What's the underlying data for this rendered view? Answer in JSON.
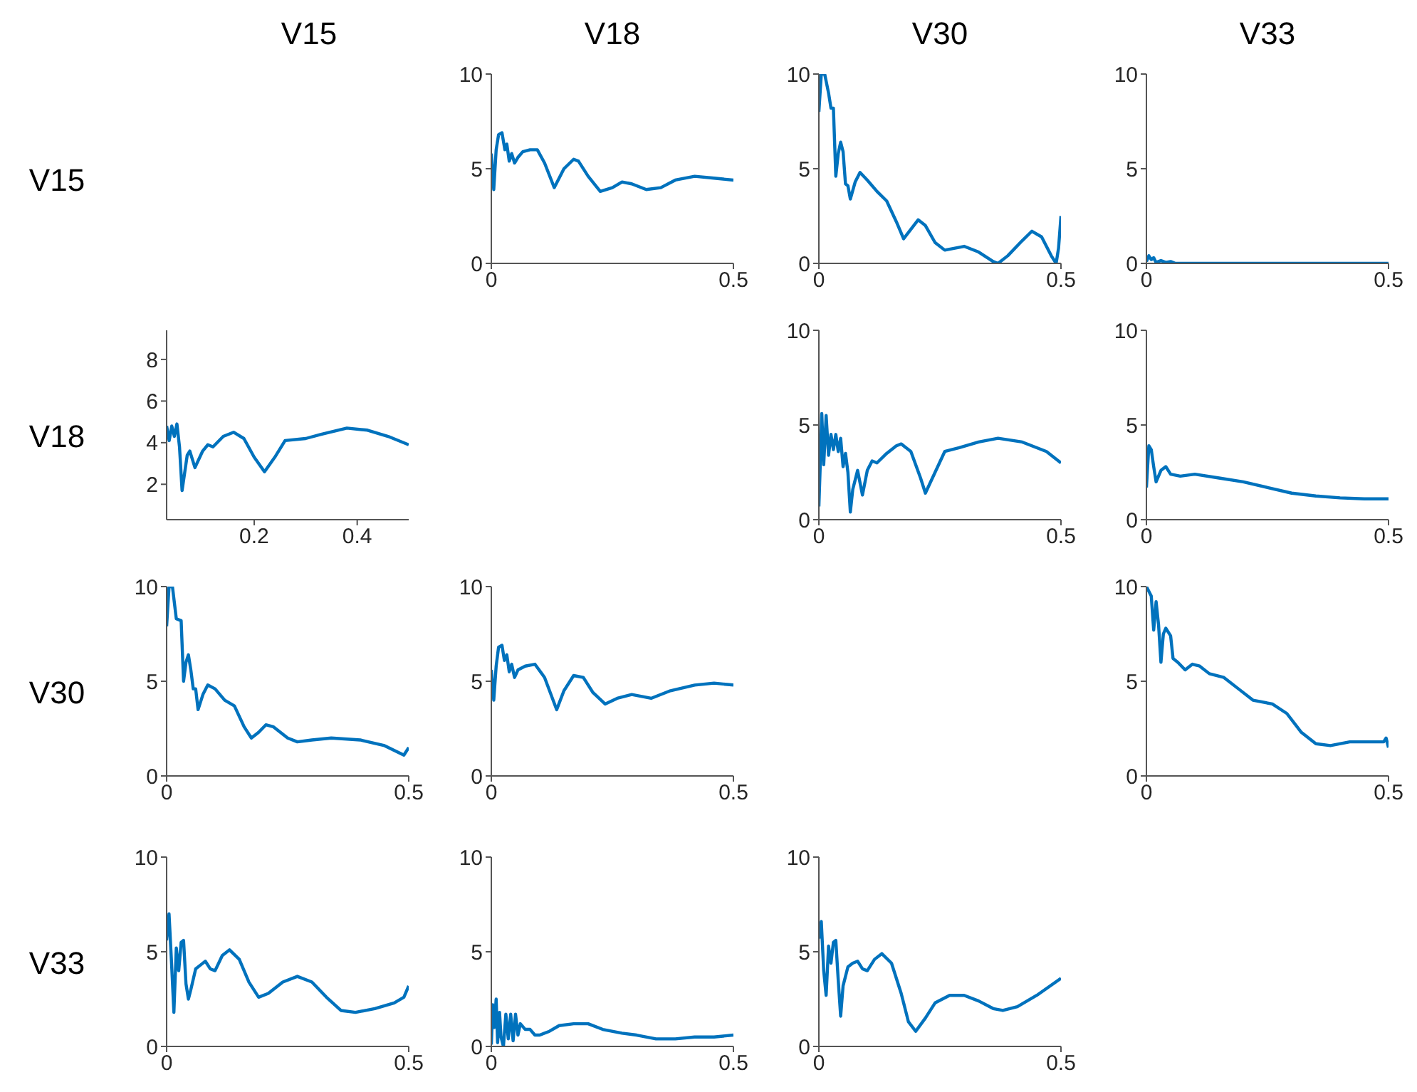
{
  "chart_data": [
    {
      "type": "other",
      "annotations": [
        "V15",
        "V18",
        "V30",
        "V33"
      ]
    },
    {
      "type": "other",
      "annotations": [
        "V15",
        "V18",
        "V30",
        "V33"
      ]
    },
    {
      "type": "line",
      "color": "#0072bd",
      "xlim": [
        0,
        0.5
      ],
      "xticks": [
        0,
        0.5
      ],
      "ylim": [
        0,
        10
      ],
      "yticks": [
        0,
        5,
        10
      ],
      "x": [
        0,
        0.005,
        0.01,
        0.015,
        0.022,
        0.028,
        0.032,
        0.037,
        0.042,
        0.048,
        0.055,
        0.065,
        0.08,
        0.095,
        0.11,
        0.13,
        0.15,
        0.17,
        0.18,
        0.2,
        0.225,
        0.25,
        0.27,
        0.29,
        0.32,
        0.35,
        0.38,
        0.42,
        0.46,
        0.5
      ],
      "values": [
        5.8,
        3.9,
        6.0,
        6.8,
        6.9,
        6.0,
        6.3,
        5.4,
        5.8,
        5.3,
        5.6,
        5.9,
        6.0,
        6.0,
        5.3,
        4.0,
        5.0,
        5.5,
        5.4,
        4.6,
        3.8,
        4.0,
        4.3,
        4.2,
        3.9,
        4.0,
        4.4,
        4.6,
        4.5,
        4.4
      ]
    },
    {
      "type": "line",
      "color": "#0072bd",
      "xlim": [
        0,
        0.5
      ],
      "xticks": [
        0,
        0.5
      ],
      "ylim": [
        0,
        10
      ],
      "yticks": [
        0,
        5,
        10
      ],
      "x": [
        0,
        0.005,
        0.012,
        0.02,
        0.025,
        0.03,
        0.035,
        0.04,
        0.045,
        0.05,
        0.055,
        0.06,
        0.065,
        0.075,
        0.085,
        0.1,
        0.12,
        0.14,
        0.16,
        0.175,
        0.19,
        0.205,
        0.22,
        0.24,
        0.26,
        0.3,
        0.33,
        0.36,
        0.37,
        0.39,
        0.42,
        0.44,
        0.46,
        0.48,
        0.49,
        0.495,
        0.5
      ],
      "values": [
        8,
        10,
        10,
        9,
        8.2,
        8.2,
        4.6,
        5.8,
        6.4,
        5.9,
        4.2,
        4.1,
        3.4,
        4.3,
        4.8,
        4.4,
        3.8,
        3.3,
        2.2,
        1.3,
        1.8,
        2.3,
        2.0,
        1.1,
        0.7,
        0.9,
        0.6,
        0.1,
        0,
        0.4,
        1.2,
        1.7,
        1.4,
        0.4,
        0,
        0.8,
        2.5
      ]
    },
    {
      "type": "line",
      "color": "#0072bd",
      "xlim": [
        0,
        0.5
      ],
      "xticks": [
        0,
        0.5
      ],
      "ylim": [
        0,
        10
      ],
      "yticks": [
        0,
        5,
        10
      ],
      "x": [
        0,
        0.005,
        0.01,
        0.015,
        0.02,
        0.03,
        0.04,
        0.05,
        0.06,
        0.1,
        0.2,
        0.3,
        0.4,
        0.5
      ],
      "values": [
        0.1,
        0.4,
        0.2,
        0.3,
        0.05,
        0.15,
        0.05,
        0.1,
        0,
        0,
        0,
        0,
        0,
        0
      ]
    },
    {
      "type": "line",
      "color": "#0072bd",
      "xlim": [
        0.03,
        0.5
      ],
      "xticks": [
        0.2,
        0.4
      ],
      "ylim": [
        0.3,
        9.4
      ],
      "yticks": [
        2,
        4,
        6,
        8
      ],
      "x": [
        0.03,
        0.035,
        0.04,
        0.045,
        0.05,
        0.055,
        0.06,
        0.07,
        0.075,
        0.085,
        0.1,
        0.11,
        0.12,
        0.14,
        0.16,
        0.18,
        0.2,
        0.22,
        0.24,
        0.26,
        0.3,
        0.33,
        0.38,
        0.42,
        0.46,
        0.5
      ],
      "values": [
        4.8,
        4.1,
        4.8,
        4.3,
        4.9,
        3.8,
        1.7,
        3.4,
        3.6,
        2.8,
        3.6,
        3.9,
        3.8,
        4.3,
        4.5,
        4.2,
        3.3,
        2.6,
        3.3,
        4.1,
        4.2,
        4.4,
        4.7,
        4.6,
        4.3,
        3.9
      ]
    },
    {
      "type": "line",
      "color": "#0072bd",
      "xlim": [
        0,
        0.5
      ],
      "xticks": [
        0,
        0.5
      ],
      "ylim": [
        0,
        10
      ],
      "yticks": [
        0,
        5,
        10
      ],
      "x": [
        0,
        0.003,
        0.006,
        0.01,
        0.015,
        0.02,
        0.025,
        0.03,
        0.035,
        0.04,
        0.045,
        0.05,
        0.055,
        0.06,
        0.065,
        0.07,
        0.08,
        0.09,
        0.1,
        0.11,
        0.12,
        0.14,
        0.16,
        0.17,
        0.19,
        0.21,
        0.22,
        0.24,
        0.26,
        0.29,
        0.33,
        0.37,
        0.42,
        0.47,
        0.5
      ],
      "values": [
        0.7,
        3,
        5.6,
        2.9,
        5.5,
        3.4,
        4.5,
        3.7,
        4.5,
        3.6,
        4.3,
        2.8,
        3.5,
        2.5,
        0.4,
        1.6,
        2.6,
        1.3,
        2.6,
        3.1,
        3.0,
        3.5,
        3.9,
        4.0,
        3.6,
        2.2,
        1.4,
        2.5,
        3.6,
        3.8,
        4.1,
        4.3,
        4.1,
        3.6,
        3.0
      ]
    },
    {
      "type": "line",
      "color": "#0072bd",
      "xlim": [
        0,
        0.5
      ],
      "xticks": [
        0,
        0.5
      ],
      "ylim": [
        0,
        10
      ],
      "yticks": [
        0,
        5,
        10
      ],
      "x": [
        0,
        0.005,
        0.01,
        0.015,
        0.02,
        0.03,
        0.04,
        0.05,
        0.07,
        0.1,
        0.15,
        0.2,
        0.25,
        0.3,
        0.35,
        0.4,
        0.45,
        0.5
      ],
      "values": [
        1.7,
        3.9,
        3.7,
        2.8,
        2.0,
        2.6,
        2.8,
        2.4,
        2.3,
        2.4,
        2.2,
        2.0,
        1.7,
        1.4,
        1.25,
        1.15,
        1.1,
        1.1
      ]
    },
    {
      "type": "line",
      "color": "#0072bd",
      "xlim": [
        0,
        0.5
      ],
      "xticks": [
        0,
        0.5
      ],
      "ylim": [
        0,
        10
      ],
      "yticks": [
        0,
        5,
        10
      ],
      "x": [
        0,
        0.005,
        0.012,
        0.02,
        0.03,
        0.035,
        0.04,
        0.045,
        0.05,
        0.055,
        0.06,
        0.065,
        0.075,
        0.085,
        0.1,
        0.12,
        0.14,
        0.16,
        0.175,
        0.19,
        0.205,
        0.22,
        0.25,
        0.27,
        0.3,
        0.34,
        0.4,
        0.45,
        0.49,
        0.5
      ],
      "values": [
        7.9,
        10,
        10,
        8.3,
        8.2,
        5.0,
        6.0,
        6.4,
        5.6,
        4.6,
        4.6,
        3.5,
        4.3,
        4.8,
        4.6,
        4.0,
        3.7,
        2.6,
        2.0,
        2.3,
        2.7,
        2.6,
        2.0,
        1.8,
        1.9,
        2.0,
        1.9,
        1.6,
        1.1,
        1.5
      ]
    },
    {
      "type": "line",
      "color": "#0072bd",
      "xlim": [
        0,
        0.5
      ],
      "xticks": [
        0,
        0.5
      ],
      "ylim": [
        0,
        10
      ],
      "yticks": [
        0,
        5,
        10
      ],
      "x": [
        0,
        0.005,
        0.01,
        0.015,
        0.022,
        0.027,
        0.032,
        0.037,
        0.042,
        0.048,
        0.055,
        0.07,
        0.09,
        0.11,
        0.135,
        0.15,
        0.17,
        0.19,
        0.21,
        0.235,
        0.26,
        0.29,
        0.33,
        0.37,
        0.42,
        0.46,
        0.5
      ],
      "values": [
        5.6,
        4.0,
        5.8,
        6.8,
        6.9,
        6.1,
        6.4,
        5.5,
        5.9,
        5.2,
        5.6,
        5.8,
        5.9,
        5.2,
        3.5,
        4.5,
        5.3,
        5.2,
        4.4,
        3.8,
        4.1,
        4.3,
        4.1,
        4.5,
        4.8,
        4.9,
        4.8
      ]
    },
    {
      "type": "line",
      "color": "#0072bd",
      "xlim": [
        0,
        0.5
      ],
      "xticks": [
        0,
        0.5
      ],
      "ylim": [
        0,
        10
      ],
      "yticks": [
        0,
        5,
        10
      ],
      "x": [
        0,
        0.01,
        0.015,
        0.02,
        0.025,
        0.03,
        0.035,
        0.04,
        0.05,
        0.055,
        0.065,
        0.08,
        0.095,
        0.11,
        0.13,
        0.16,
        0.19,
        0.22,
        0.26,
        0.29,
        0.32,
        0.35,
        0.38,
        0.42,
        0.46,
        0.49,
        0.495,
        0.5
      ],
      "values": [
        10,
        9.5,
        7.7,
        9.2,
        8.0,
        6.0,
        7.5,
        7.8,
        7.4,
        6.2,
        6.0,
        5.6,
        5.9,
        5.8,
        5.4,
        5.2,
        4.6,
        4.0,
        3.8,
        3.3,
        2.3,
        1.7,
        1.6,
        1.8,
        1.8,
        1.8,
        2.0,
        1.5
      ]
    },
    {
      "type": "line",
      "color": "#0072bd",
      "xlim": [
        0,
        0.5
      ],
      "xticks": [
        0,
        0.5
      ],
      "ylim": [
        0,
        10
      ],
      "yticks": [
        0,
        5,
        10
      ],
      "x": [
        0,
        0.005,
        0.01,
        0.015,
        0.02,
        0.025,
        0.03,
        0.035,
        0.04,
        0.045,
        0.05,
        0.06,
        0.07,
        0.08,
        0.09,
        0.1,
        0.115,
        0.13,
        0.15,
        0.17,
        0.19,
        0.21,
        0.24,
        0.27,
        0.3,
        0.33,
        0.36,
        0.39,
        0.43,
        0.47,
        0.49,
        0.5
      ],
      "values": [
        5.6,
        7.0,
        4.5,
        1.8,
        5.2,
        4.0,
        5.5,
        5.6,
        3.3,
        2.5,
        3.0,
        4.1,
        4.3,
        4.5,
        4.1,
        4.0,
        4.8,
        5.1,
        4.6,
        3.4,
        2.6,
        2.8,
        3.4,
        3.7,
        3.4,
        2.6,
        1.9,
        1.8,
        2.0,
        2.3,
        2.6,
        3.2
      ]
    },
    {
      "type": "line",
      "color": "#0072bd",
      "xlim": [
        0,
        0.5
      ],
      "xticks": [
        0,
        0.5
      ],
      "ylim": [
        0,
        10
      ],
      "yticks": [
        0,
        5,
        10
      ],
      "x": [
        0,
        0.003,
        0.006,
        0.01,
        0.013,
        0.017,
        0.02,
        0.025,
        0.03,
        0.035,
        0.04,
        0.045,
        0.05,
        0.055,
        0.06,
        0.07,
        0.08,
        0.09,
        0.1,
        0.12,
        0.14,
        0.17,
        0.2,
        0.23,
        0.27,
        0.3,
        0.34,
        0.38,
        0.42,
        0.46,
        0.5
      ],
      "values": [
        0.1,
        2.2,
        1.0,
        2.5,
        0.2,
        1.8,
        0.5,
        0,
        1.7,
        0.4,
        1.7,
        0.3,
        1.7,
        0.6,
        1.2,
        0.9,
        0.9,
        0.6,
        0.6,
        0.8,
        1.1,
        1.2,
        1.2,
        0.9,
        0.7,
        0.6,
        0.4,
        0.4,
        0.5,
        0.5,
        0.6
      ]
    },
    {
      "type": "line",
      "color": "#0072bd",
      "xlim": [
        0,
        0.5
      ],
      "xticks": [
        0,
        0.5
      ],
      "ylim": [
        0,
        10
      ],
      "yticks": [
        0,
        5,
        10
      ],
      "x": [
        0,
        0.005,
        0.01,
        0.015,
        0.02,
        0.025,
        0.03,
        0.035,
        0.04,
        0.045,
        0.05,
        0.06,
        0.07,
        0.08,
        0.09,
        0.1,
        0.115,
        0.13,
        0.15,
        0.17,
        0.185,
        0.2,
        0.22,
        0.24,
        0.27,
        0.3,
        0.33,
        0.36,
        0.38,
        0.41,
        0.45,
        0.5
      ],
      "values": [
        5.7,
        6.6,
        4.0,
        2.7,
        5.3,
        4.4,
        5.5,
        5.6,
        3.5,
        1.6,
        3.2,
        4.2,
        4.4,
        4.5,
        4.1,
        4.0,
        4.6,
        4.9,
        4.4,
        2.8,
        1.3,
        0.8,
        1.5,
        2.3,
        2.7,
        2.7,
        2.4,
        2.0,
        1.9,
        2.1,
        2.7,
        3.6
      ]
    }
  ]
}
